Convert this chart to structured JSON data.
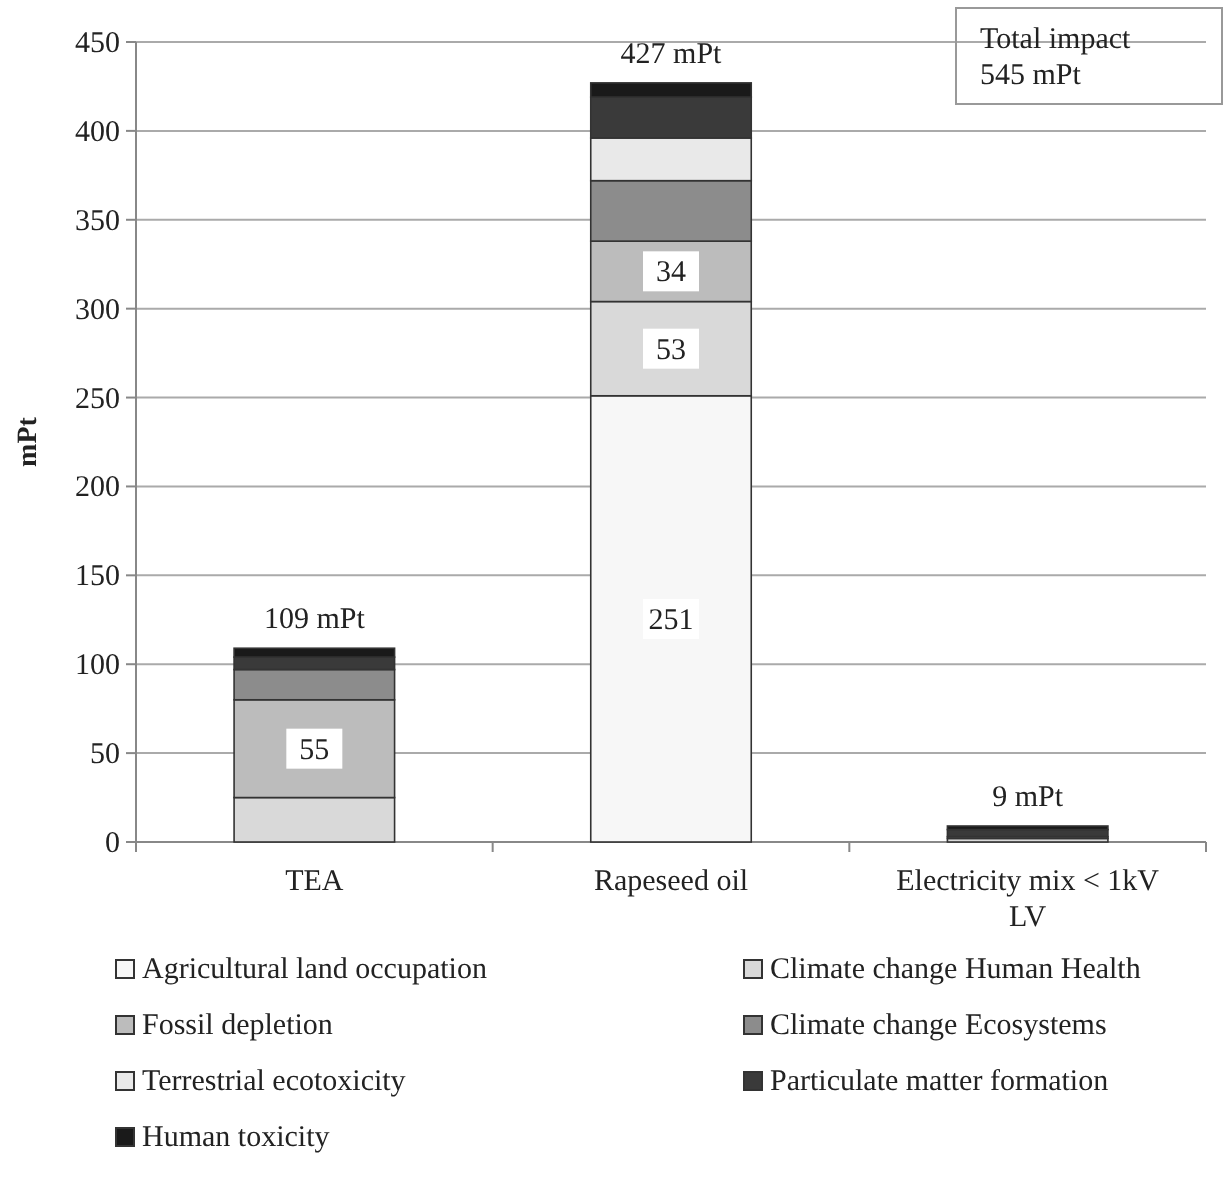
{
  "chart_data": {
    "type": "bar",
    "stacked": true,
    "ylabel": "mPt",
    "categories": [
      "TEA",
      "Rapeseed oil",
      "Electricity mix < 1kV LV"
    ],
    "series": [
      {
        "name": "Agricultural land occupation",
        "color": "#f7f7f7",
        "values": [
          0,
          251,
          0
        ],
        "value_labels": [
          null,
          "251",
          null
        ]
      },
      {
        "name": "Climate change Human Health",
        "color": "#d9d9d9",
        "values": [
          25,
          53,
          2
        ],
        "value_labels": [
          null,
          "53",
          null
        ]
      },
      {
        "name": "Fossil depletion",
        "color": "#bcbcbc",
        "values": [
          55,
          34,
          0
        ],
        "value_labels": [
          "55",
          "34",
          null
        ]
      },
      {
        "name": "Climate change Ecosystems",
        "color": "#8c8c8c",
        "values": [
          17,
          34,
          1
        ],
        "value_labels": [
          null,
          null,
          null
        ]
      },
      {
        "name": "Terrestrial ecotoxicity",
        "color": "#e9e9e9",
        "values": [
          0,
          24,
          0
        ],
        "value_labels": [
          null,
          null,
          null
        ]
      },
      {
        "name": "Particulate matter formation",
        "color": "#3a3a3a",
        "values": [
          7,
          23,
          4
        ],
        "value_labels": [
          null,
          null,
          null
        ]
      },
      {
        "name": "Human toxicity",
        "color": "#1a1a1a",
        "values": [
          5,
          8,
          2
        ],
        "value_labels": [
          null,
          null,
          null
        ]
      }
    ],
    "totals": [
      "109 mPt",
      "427 mPt",
      "9 mPt"
    ],
    "annotations": [
      "Total impact 545 mPt"
    ],
    "ylim": [
      0,
      450
    ],
    "yticks": [
      0,
      50,
      100,
      150,
      200,
      250,
      300,
      350,
      400,
      450
    ],
    "grid": "y",
    "legend": "bottom"
  }
}
